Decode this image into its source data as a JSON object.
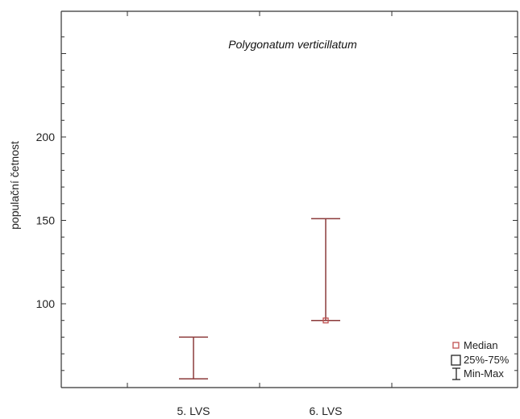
{
  "chart_data": {
    "type": "box",
    "title": "Polygonatum verticillatum",
    "xlabel": "",
    "ylabel": "populační četnost",
    "categories": [
      "5. LVS",
      "6. LVS"
    ],
    "series": [
      {
        "category": "5. LVS",
        "median": 55,
        "q1": 55,
        "q3": 55,
        "min": 55,
        "max": 80
      },
      {
        "category": "6. LVS",
        "median": 90,
        "q1": 90,
        "q3": 90,
        "min": 90,
        "max": 151
      }
    ],
    "y_ticks": [
      100,
      150,
      200
    ],
    "ylim": [
      50,
      265
    ],
    "grid": false,
    "legend": {
      "position": "bottom-right",
      "entries": [
        "Median",
        "25%-75%",
        "Min-Max"
      ]
    },
    "colors": {
      "whisker": "#8b3a3a",
      "median_marker": "#c05050",
      "axis": "#333333"
    }
  }
}
